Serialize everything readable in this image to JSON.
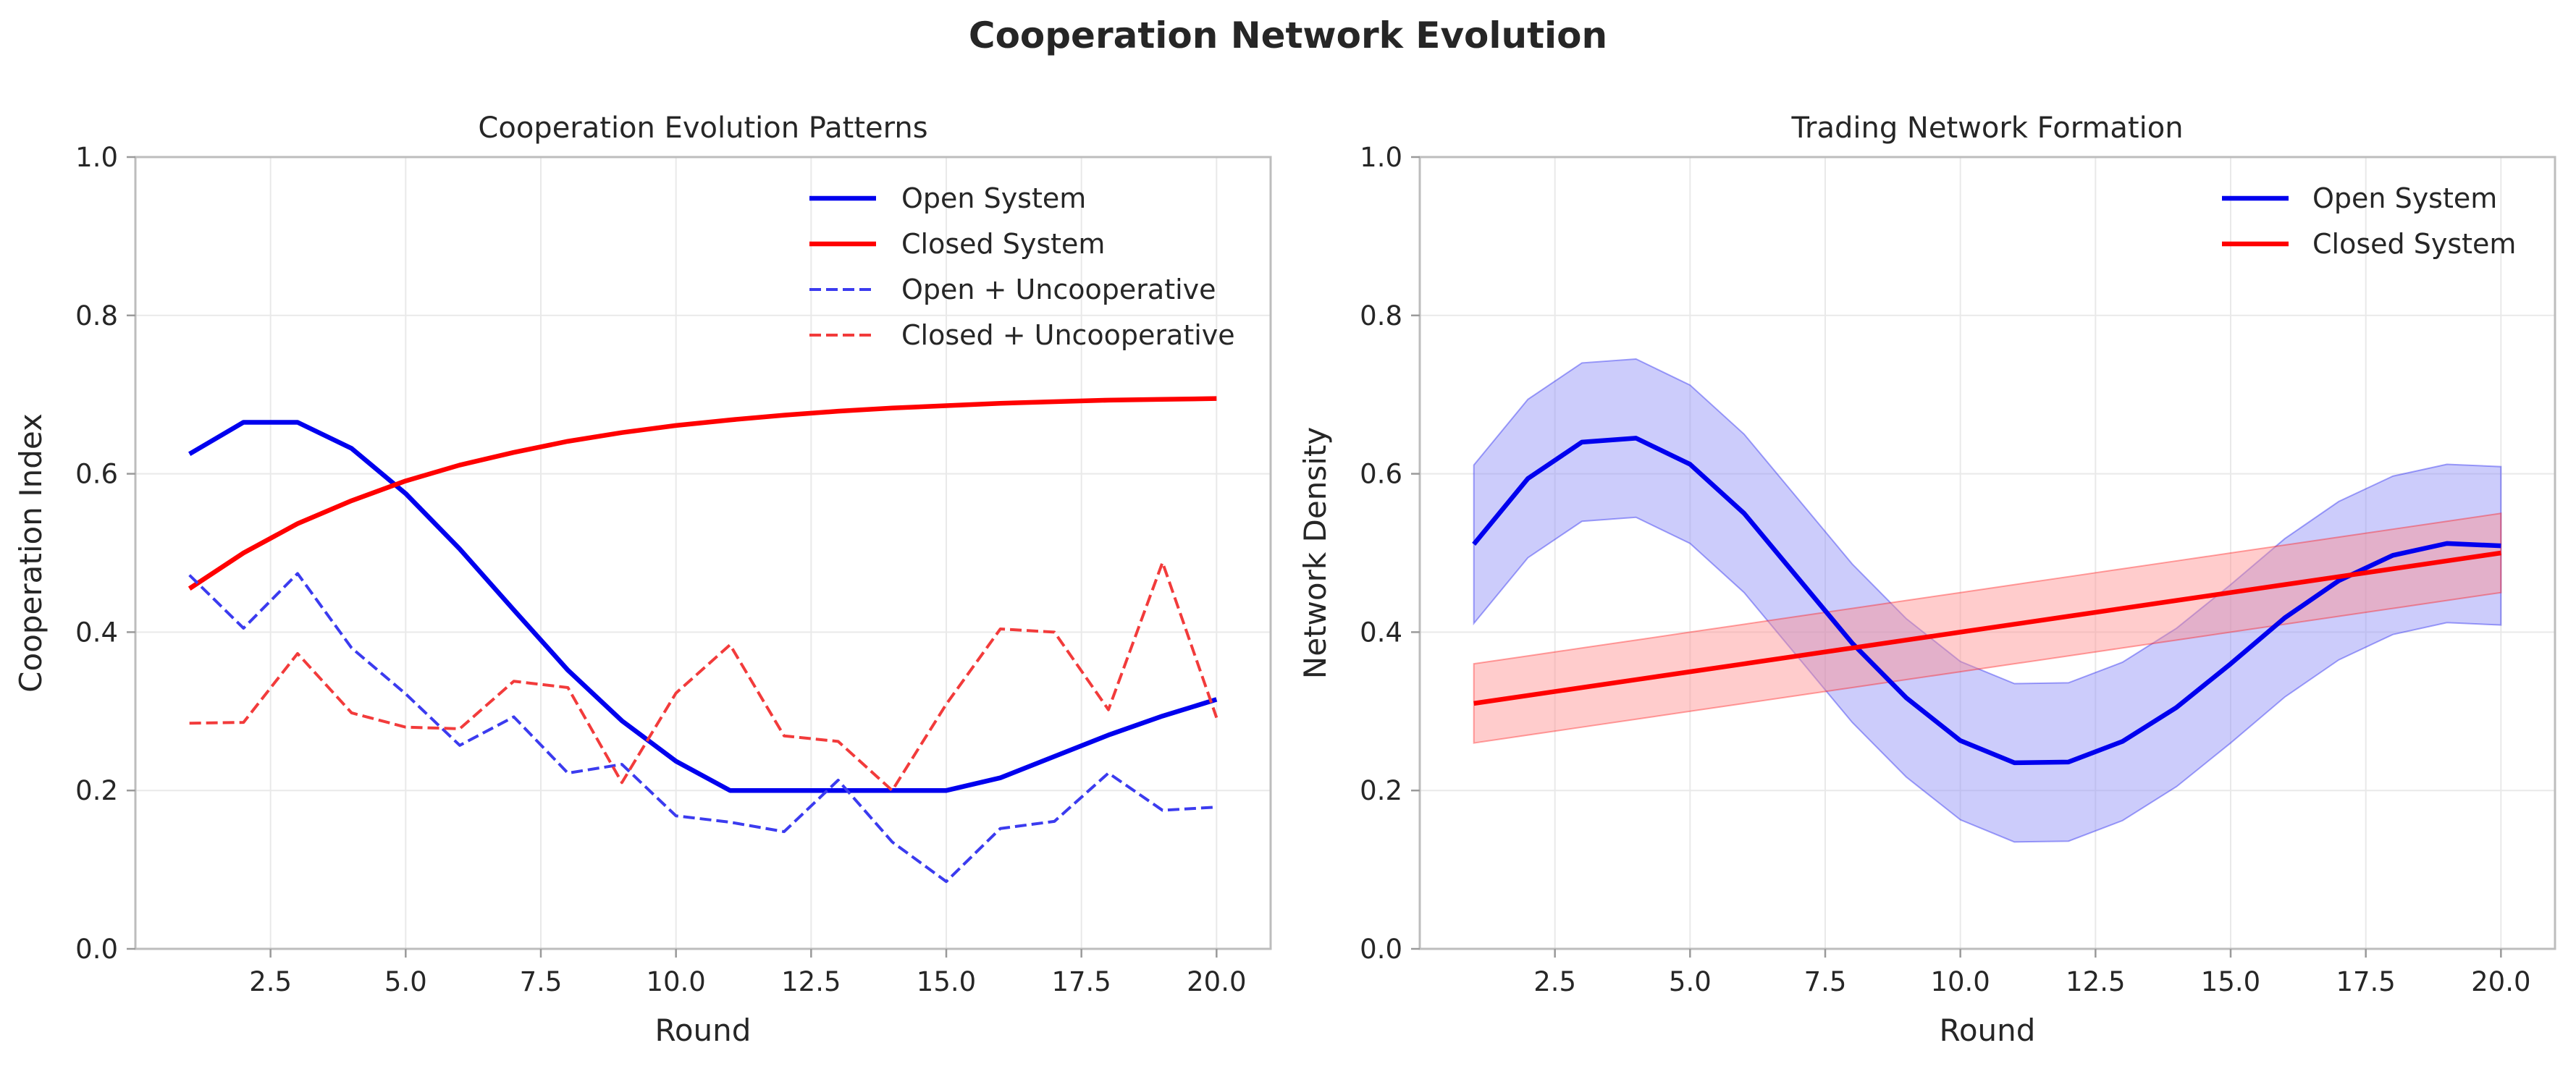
{
  "figure": {
    "title": "Cooperation Network Evolution"
  },
  "chart_data": [
    {
      "type": "line",
      "title": "Cooperation Evolution Patterns",
      "xlabel": "Round",
      "ylabel": "Cooperation Index",
      "xlim": [
        0,
        21
      ],
      "ylim": [
        0.0,
        1.0
      ],
      "xticks": [
        2.5,
        5.0,
        7.5,
        10.0,
        12.5,
        15.0,
        17.5,
        20.0
      ],
      "xtick_labels": [
        "2.5",
        "5.0",
        "7.5",
        "10.0",
        "12.5",
        "15.0",
        "17.5",
        "20.0"
      ],
      "yticks": [
        0.0,
        0.2,
        0.4,
        0.6,
        0.8,
        1.0
      ],
      "ytick_labels": [
        "0.0",
        "0.2",
        "0.4",
        "0.6",
        "0.8",
        "1.0"
      ],
      "grid": true,
      "legend": "top-right",
      "x": [
        1,
        2,
        3,
        4,
        5,
        6,
        7,
        8,
        9,
        10,
        11,
        12,
        13,
        14,
        15,
        16,
        17,
        18,
        19,
        20
      ],
      "series": [
        {
          "name": "Open System",
          "color": "#0000ee",
          "style": "solid",
          "values": [
            0.625,
            0.665,
            0.665,
            0.632,
            0.575,
            0.505,
            0.428,
            0.352,
            0.288,
            0.237,
            0.2,
            0.2,
            0.2,
            0.2,
            0.2,
            0.216,
            0.243,
            0.27,
            0.294,
            0.315
          ]
        },
        {
          "name": "Closed System",
          "color": "#ff0000",
          "style": "solid",
          "values": [
            0.455,
            0.5,
            0.537,
            0.566,
            0.591,
            0.611,
            0.627,
            0.641,
            0.652,
            0.661,
            0.668,
            0.674,
            0.679,
            0.683,
            0.686,
            0.689,
            0.691,
            0.693,
            0.694,
            0.695
          ]
        },
        {
          "name": "Open + Uncooperative",
          "color": "#3b3bef",
          "style": "dashed",
          "values": [
            0.472,
            0.405,
            0.474,
            0.38,
            0.322,
            0.257,
            0.293,
            0.222,
            0.233,
            0.168,
            0.16,
            0.148,
            0.213,
            0.135,
            0.085,
            0.152,
            0.161,
            0.222,
            0.175,
            0.179
          ]
        },
        {
          "name": "Closed + Uncooperative",
          "color": "#f23b3b",
          "style": "dashed",
          "values": [
            0.285,
            0.286,
            0.373,
            0.298,
            0.28,
            0.278,
            0.338,
            0.33,
            0.21,
            0.323,
            0.384,
            0.269,
            0.262,
            0.2,
            0.309,
            0.404,
            0.4,
            0.302,
            0.488,
            0.292
          ]
        }
      ]
    },
    {
      "type": "line",
      "title": "Trading Network Formation",
      "xlabel": "Round",
      "ylabel": "Network Density",
      "xlim": [
        0,
        21
      ],
      "ylim": [
        0.0,
        1.0
      ],
      "xticks": [
        2.5,
        5.0,
        7.5,
        10.0,
        12.5,
        15.0,
        17.5,
        20.0
      ],
      "xtick_labels": [
        "2.5",
        "5.0",
        "7.5",
        "10.0",
        "12.5",
        "15.0",
        "17.5",
        "20.0"
      ],
      "yticks": [
        0.0,
        0.2,
        0.4,
        0.6,
        0.8,
        1.0
      ],
      "ytick_labels": [
        "0.0",
        "0.2",
        "0.4",
        "0.6",
        "0.8",
        "1.0"
      ],
      "grid": true,
      "legend": "top-right",
      "x": [
        1,
        2,
        3,
        4,
        5,
        6,
        7,
        8,
        9,
        10,
        11,
        12,
        13,
        14,
        15,
        16,
        17,
        18,
        19,
        20
      ],
      "series": [
        {
          "name": "Open System",
          "color": "#0000ee",
          "band_color": "#8f8ff7",
          "style": "solid",
          "values": [
            0.511,
            0.594,
            0.64,
            0.645,
            0.612,
            0.55,
            0.468,
            0.386,
            0.317,
            0.263,
            0.235,
            0.236,
            0.262,
            0.305,
            0.36,
            0.418,
            0.465,
            0.497,
            0.512,
            0.509
          ],
          "lower": [
            0.411,
            0.494,
            0.54,
            0.545,
            0.512,
            0.45,
            0.368,
            0.286,
            0.217,
            0.163,
            0.135,
            0.136,
            0.162,
            0.205,
            0.26,
            0.318,
            0.365,
            0.397,
            0.412,
            0.409
          ],
          "upper": [
            0.611,
            0.694,
            0.74,
            0.745,
            0.712,
            0.65,
            0.568,
            0.486,
            0.417,
            0.363,
            0.335,
            0.336,
            0.362,
            0.405,
            0.46,
            0.518,
            0.565,
            0.597,
            0.612,
            0.609
          ]
        },
        {
          "name": "Closed System",
          "color": "#ff0000",
          "band_color": "#ff8f8f",
          "style": "solid",
          "values": [
            0.31,
            0.32,
            0.33,
            0.34,
            0.35,
            0.36,
            0.37,
            0.38,
            0.39,
            0.4,
            0.41,
            0.42,
            0.43,
            0.44,
            0.45,
            0.46,
            0.47,
            0.48,
            0.49,
            0.5
          ],
          "lower": [
            0.26,
            0.27,
            0.28,
            0.29,
            0.3,
            0.31,
            0.32,
            0.33,
            0.34,
            0.35,
            0.36,
            0.37,
            0.38,
            0.39,
            0.4,
            0.41,
            0.42,
            0.43,
            0.44,
            0.45
          ],
          "upper": [
            0.36,
            0.37,
            0.38,
            0.39,
            0.4,
            0.41,
            0.42,
            0.43,
            0.44,
            0.45,
            0.46,
            0.47,
            0.48,
            0.49,
            0.5,
            0.51,
            0.52,
            0.53,
            0.54,
            0.55
          ]
        }
      ]
    }
  ]
}
